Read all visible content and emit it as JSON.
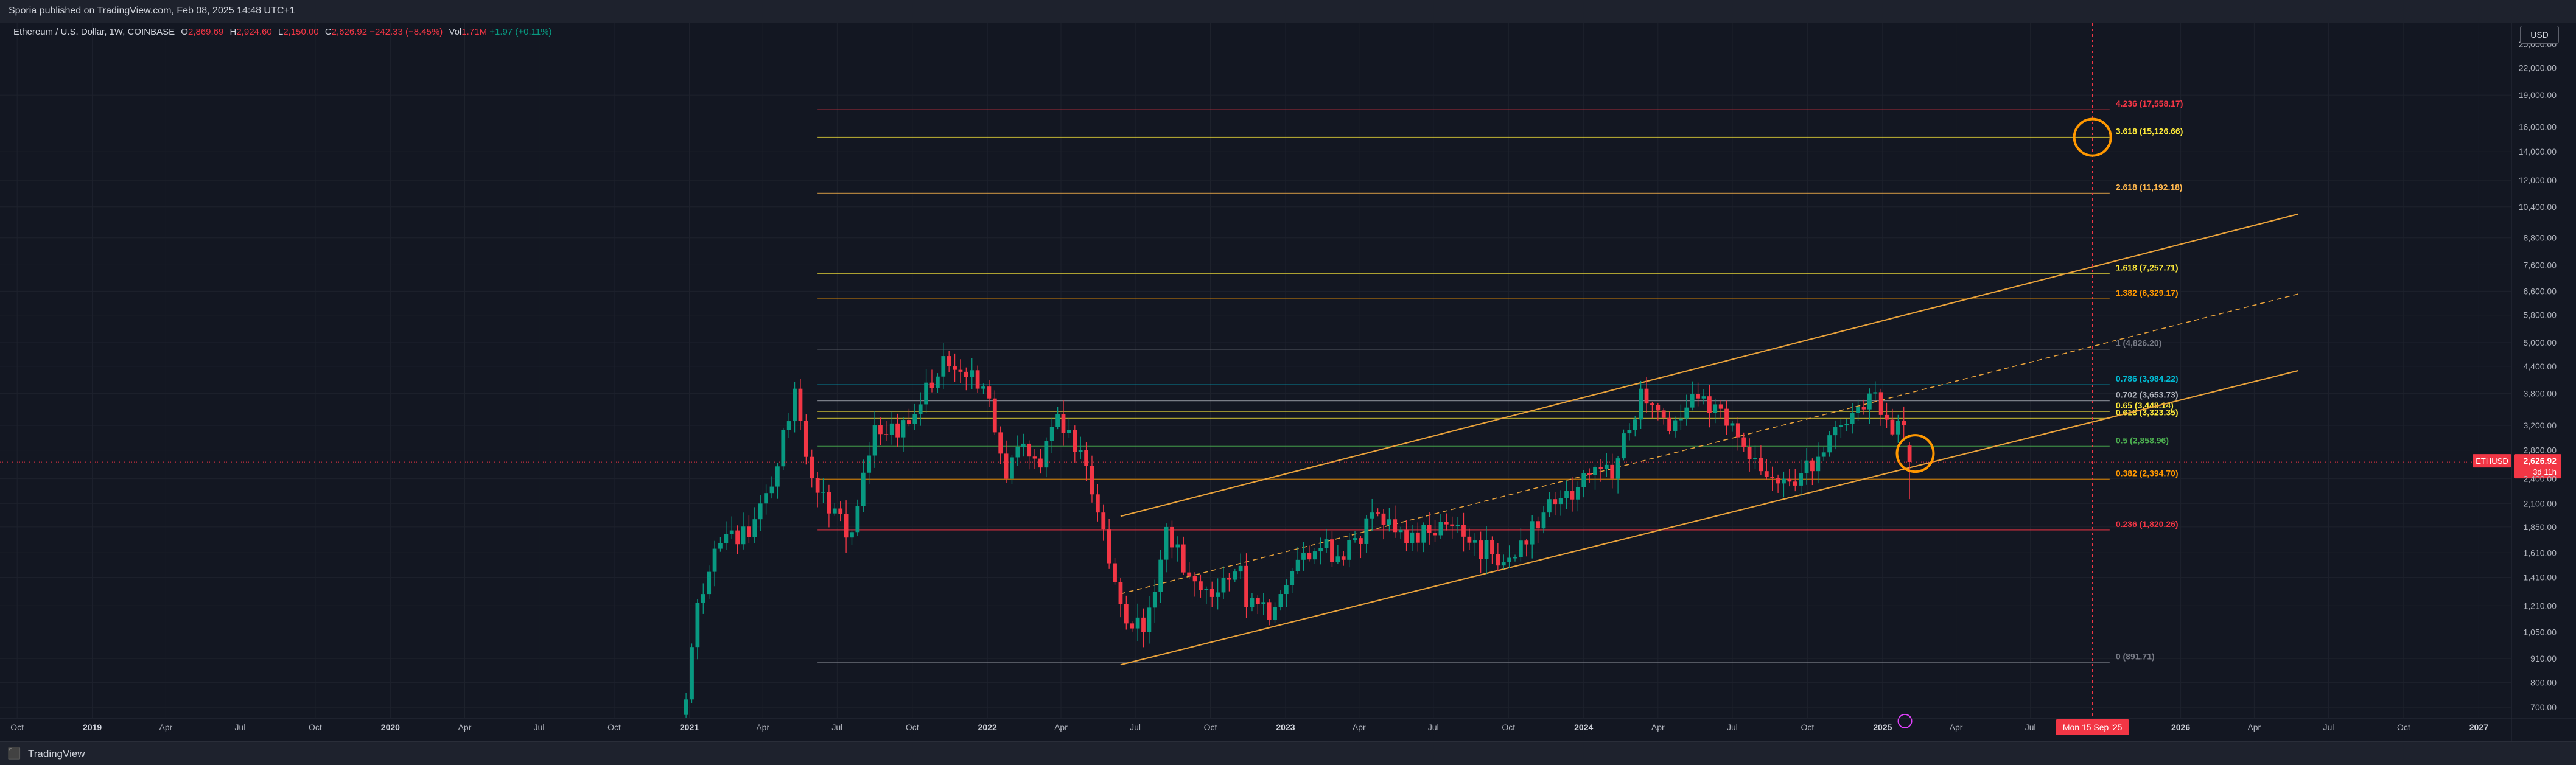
{
  "header": {
    "publisher": "Sporia published on TradingView.com, Feb 08, 2025 14:48 UTC+1"
  },
  "legend": {
    "symbol": "Ethereum / U.S. Dollar, 1W, COINBASE",
    "open_label": "O",
    "open": "2,869.69",
    "high_label": "H",
    "high": "2,924.60",
    "low_label": "L",
    "low": "2,150.00",
    "close_label": "C",
    "close": "2,626.92",
    "change": "−242.33 (−8.45%)",
    "vol_label": "Vol",
    "vol": "1.71M",
    "vol_change": "+1.97 (+0.11%)"
  },
  "currency_button": "USD",
  "colors": {
    "up": "#089981",
    "down": "#f23645",
    "channel": "#e9a23b",
    "highlight": "#ff9800",
    "background": "#131722"
  },
  "price_axis": {
    "scale": "log",
    "ticks": [
      "25,000.00",
      "22,000.00",
      "19,000.00",
      "16,000.00",
      "14,000.00",
      "12,000.00",
      "10,400.00",
      "8,800.00",
      "7,600.00",
      "6,600.00",
      "5,800.00",
      "5,000.00",
      "4,400.00",
      "3,800.00",
      "3,200.00",
      "2,800.00",
      "2,400.00",
      "2,100.00",
      "1,850.00",
      "1,610.00",
      "1,410.00",
      "1,210.00",
      "1,050.00",
      "910.00",
      "800.00",
      "700.00"
    ],
    "current_label": "ETHUSD",
    "current_price": "2,626.92",
    "countdown": "3d 11h"
  },
  "time_axis": {
    "labels": [
      {
        "t": "Oct",
        "bold": false,
        "x": "2018-10-01"
      },
      {
        "t": "2019",
        "bold": true,
        "x": "2019-01-01"
      },
      {
        "t": "Apr",
        "bold": false,
        "x": "2019-04-01"
      },
      {
        "t": "Jul",
        "bold": false,
        "x": "2019-07-01"
      },
      {
        "t": "Oct",
        "bold": false,
        "x": "2019-10-01"
      },
      {
        "t": "2020",
        "bold": true,
        "x": "2020-01-01"
      },
      {
        "t": "Apr",
        "bold": false,
        "x": "2020-04-01"
      },
      {
        "t": "Jul",
        "bold": false,
        "x": "2020-07-01"
      },
      {
        "t": "Oct",
        "bold": false,
        "x": "2020-10-01"
      },
      {
        "t": "2021",
        "bold": true,
        "x": "2021-01-01"
      },
      {
        "t": "Apr",
        "bold": false,
        "x": "2021-04-01"
      },
      {
        "t": "Jul",
        "bold": false,
        "x": "2021-07-01"
      },
      {
        "t": "Oct",
        "bold": false,
        "x": "2021-10-01"
      },
      {
        "t": "2022",
        "bold": true,
        "x": "2022-01-01"
      },
      {
        "t": "Apr",
        "bold": false,
        "x": "2022-04-01"
      },
      {
        "t": "Jul",
        "bold": false,
        "x": "2022-07-01"
      },
      {
        "t": "Oct",
        "bold": false,
        "x": "2022-10-01"
      },
      {
        "t": "2023",
        "bold": true,
        "x": "2023-01-01"
      },
      {
        "t": "Apr",
        "bold": false,
        "x": "2023-04-01"
      },
      {
        "t": "Jul",
        "bold": false,
        "x": "2023-07-01"
      },
      {
        "t": "Oct",
        "bold": false,
        "x": "2023-10-01"
      },
      {
        "t": "2024",
        "bold": true,
        "x": "2024-01-01"
      },
      {
        "t": "Apr",
        "bold": false,
        "x": "2024-04-01"
      },
      {
        "t": "Jul",
        "bold": false,
        "x": "2024-07-01"
      },
      {
        "t": "Oct",
        "bold": false,
        "x": "2024-10-01"
      },
      {
        "t": "2025",
        "bold": true,
        "x": "2025-01-01"
      },
      {
        "t": "Apr",
        "bold": false,
        "x": "2025-04-01"
      },
      {
        "t": "Jul",
        "bold": false,
        "x": "2025-07-01"
      },
      {
        "t": "2026",
        "bold": true,
        "x": "2026-01-01"
      },
      {
        "t": "Apr",
        "bold": false,
        "x": "2026-04-01"
      },
      {
        "t": "Jul",
        "bold": false,
        "x": "2026-07-01"
      },
      {
        "t": "Oct",
        "bold": false,
        "x": "2026-10-01"
      },
      {
        "t": "2027",
        "bold": true,
        "x": "2027-01-01"
      }
    ],
    "cursor_label": "Mon 15 Sep '25",
    "cursor_date": "2025-09-15"
  },
  "chart_data": {
    "type": "candlestick",
    "xrange": [
      "2018-09-10",
      "2027-02-10"
    ],
    "ylim": [
      660,
      28000
    ],
    "yscale": "log",
    "series": [
      {
        "name": "ETHUSD",
        "anchors": [
          [
            "2020-12-28",
            730
          ],
          [
            "2021-01-11",
            1230
          ],
          [
            "2021-02-15",
            1780
          ],
          [
            "2021-03-15",
            1750
          ],
          [
            "2021-04-12",
            2300
          ],
          [
            "2021-05-10",
            3900
          ],
          [
            "2021-05-24",
            2700
          ],
          [
            "2021-06-21",
            1990
          ],
          [
            "2021-07-19",
            1800
          ],
          [
            "2021-08-16",
            3200
          ],
          [
            "2021-09-13",
            3000
          ],
          [
            "2021-10-04",
            3400
          ],
          [
            "2021-11-08",
            4650
          ],
          [
            "2021-12-06",
            4150
          ],
          [
            "2022-01-03",
            3700
          ],
          [
            "2022-01-24",
            2400
          ],
          [
            "2022-02-14",
            2900
          ],
          [
            "2022-03-07",
            2550
          ],
          [
            "2022-03-28",
            3400
          ],
          [
            "2022-04-25",
            2800
          ],
          [
            "2022-05-16",
            2000
          ],
          [
            "2022-06-20",
            1100
          ],
          [
            "2022-07-11",
            1050
          ],
          [
            "2022-08-08",
            1850
          ],
          [
            "2022-09-12",
            1380
          ],
          [
            "2022-10-10",
            1300
          ],
          [
            "2022-11-07",
            1500
          ],
          [
            "2022-11-14",
            1200
          ],
          [
            "2022-12-19",
            1200
          ],
          [
            "2023-01-16",
            1550
          ],
          [
            "2023-02-13",
            1650
          ],
          [
            "2023-03-13",
            1550
          ],
          [
            "2023-04-17",
            2000
          ],
          [
            "2023-05-15",
            1800
          ],
          [
            "2023-06-12",
            1700
          ],
          [
            "2023-07-10",
            1900
          ],
          [
            "2023-08-14",
            1700
          ],
          [
            "2023-09-11",
            1600
          ],
          [
            "2023-10-09",
            1570
          ],
          [
            "2023-11-13",
            2000
          ],
          [
            "2023-12-11",
            2250
          ],
          [
            "2024-01-08",
            2450
          ],
          [
            "2024-02-05",
            2400
          ],
          [
            "2024-03-11",
            3900
          ],
          [
            "2024-04-15",
            3100
          ],
          [
            "2024-05-20",
            3700
          ],
          [
            "2024-06-17",
            3500
          ],
          [
            "2024-07-08",
            3000
          ],
          [
            "2024-08-05",
            2500
          ],
          [
            "2024-09-02",
            2400
          ],
          [
            "2024-10-07",
            2500
          ],
          [
            "2024-11-11",
            3200
          ],
          [
            "2024-12-16",
            3800
          ],
          [
            "2025-01-06",
            3300
          ],
          [
            "2025-01-27",
            3200
          ],
          [
            "2025-02-03",
            2626
          ]
        ]
      }
    ],
    "last_candle": {
      "date": "2025-02-03",
      "open": 2869.69,
      "high": 2924.6,
      "low": 2150.0,
      "close": 2626.92
    },
    "fib_levels": [
      {
        "label": "4.236 (17,558.17)",
        "value": 17558.17,
        "color": "#f23645"
      },
      {
        "label": "3.618 (15,126.66)",
        "value": 15126.66,
        "color": "#ffeb3b"
      },
      {
        "label": "2.618 (11,192.18)",
        "value": 11192.18,
        "color": "#ffb74d"
      },
      {
        "label": "1.618 (7,257.71)",
        "value": 7257.71,
        "color": "#ffeb3b"
      },
      {
        "label": "1.382 (6,329.17)",
        "value": 6329.17,
        "color": "#ff9800"
      },
      {
        "label": "1 (4,826.20)",
        "value": 4826.2,
        "color": "#787b86"
      },
      {
        "label": "0.786 (3,984.22)",
        "value": 3984.22,
        "color": "#00bcd4"
      },
      {
        "label": "0.702 (3,653.73)",
        "value": 3653.73,
        "color": "#b2b5be"
      },
      {
        "label": "0.65 (3,448.14)",
        "value": 3448.14,
        "color": "#ffeb3b"
      },
      {
        "label": "0.618 (3,323.35)",
        "value": 3323.35,
        "color": "#ffeb3b"
      },
      {
        "label": "0.5 (2,858.96)",
        "value": 2858.96,
        "color": "#4caf50"
      },
      {
        "label": "0.382 (2,394.70)",
        "value": 2394.7,
        "color": "#ff9800"
      },
      {
        "label": "0.236 (1,820.26)",
        "value": 1820.26,
        "color": "#f23645"
      },
      {
        "label": "0 (891.71)",
        "value": 891.71,
        "color": "#787b86"
      }
    ],
    "fib_range": [
      "2021-06-07",
      "2025-10-06"
    ],
    "channel": {
      "lower": [
        [
          "2022-06-13",
          880
        ],
        [
          "2026-05-25",
          4300
        ]
      ],
      "upper": [
        [
          "2022-06-13",
          1960
        ],
        [
          "2026-05-25",
          10000
        ]
      ],
      "middle": [
        [
          "2022-06-13",
          1290
        ],
        [
          "2026-05-25",
          6500
        ]
      ]
    },
    "circles": [
      {
        "date": "2025-09-15",
        "price": 15126.66
      },
      {
        "date": "2025-02-10",
        "price": 2750
      }
    ],
    "events_marker": {
      "date": "2025-01-06",
      "price": 680
    }
  }
}
